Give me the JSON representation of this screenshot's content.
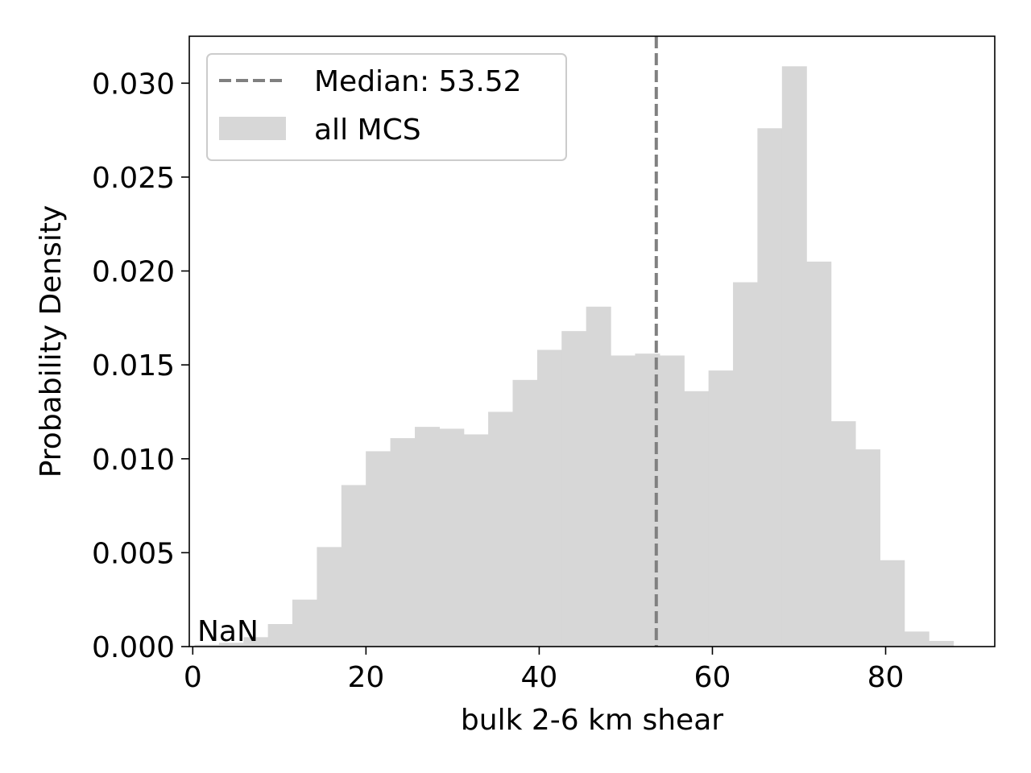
{
  "chart_data": {
    "type": "bar",
    "subtype": "histogram",
    "title": "",
    "xlabel": "bulk 2-6 km shear",
    "ylabel": "Probability Density",
    "xlim": [
      -0.4,
      92.6
    ],
    "ylim": [
      0,
      0.0325
    ],
    "x_ticks": [
      0,
      20,
      40,
      60,
      80
    ],
    "x_tick_labels": [
      "0",
      "20",
      "40",
      "60",
      "80"
    ],
    "y_ticks": [
      0,
      0.005,
      0.01,
      0.015,
      0.02,
      0.025,
      0.03
    ],
    "y_tick_labels": [
      "0.000",
      "0.005",
      "0.010",
      "0.015",
      "0.020",
      "0.025",
      "0.030"
    ],
    "grid": false,
    "bin_width": 2.826,
    "bins": [
      {
        "left": 0.2,
        "value": 0.0001
      },
      {
        "left": 3.03,
        "value": 0.0002
      },
      {
        "left": 5.85,
        "value": 0.0005
      },
      {
        "left": 8.68,
        "value": 0.0012
      },
      {
        "left": 11.5,
        "value": 0.0025
      },
      {
        "left": 14.33,
        "value": 0.0053
      },
      {
        "left": 17.16,
        "value": 0.0086
      },
      {
        "left": 19.98,
        "value": 0.0104
      },
      {
        "left": 22.81,
        "value": 0.0111
      },
      {
        "left": 25.64,
        "value": 0.0117
      },
      {
        "left": 28.46,
        "value": 0.0116
      },
      {
        "left": 31.29,
        "value": 0.0113
      },
      {
        "left": 34.11,
        "value": 0.0125
      },
      {
        "left": 36.94,
        "value": 0.0142
      },
      {
        "left": 39.77,
        "value": 0.0158
      },
      {
        "left": 42.59,
        "value": 0.0168
      },
      {
        "left": 45.42,
        "value": 0.0181
      },
      {
        "left": 48.25,
        "value": 0.0155
      },
      {
        "left": 51.07,
        "value": 0.0156
      },
      {
        "left": 53.9,
        "value": 0.0155
      },
      {
        "left": 56.72,
        "value": 0.0136
      },
      {
        "left": 59.55,
        "value": 0.0147
      },
      {
        "left": 62.38,
        "value": 0.0194
      },
      {
        "left": 65.2,
        "value": 0.0276
      },
      {
        "left": 68.03,
        "value": 0.0309
      },
      {
        "left": 70.86,
        "value": 0.0205
      },
      {
        "left": 73.68,
        "value": 0.012
      },
      {
        "left": 76.51,
        "value": 0.0105
      },
      {
        "left": 79.33,
        "value": 0.0046
      },
      {
        "left": 82.16,
        "value": 0.0008
      },
      {
        "left": 84.99,
        "value": 0.0003
      },
      {
        "left": 87.81,
        "value": 0.0
      }
    ],
    "bar_color": "#d7d7d7",
    "median": {
      "value": 53.52,
      "label": "Median: 53.52",
      "color": "#808080",
      "style": "dashed"
    },
    "legend": {
      "placement": "top-left",
      "entries": [
        {
          "label": "Median: 53.52",
          "kind": "dashed-line",
          "color": "#808080"
        },
        {
          "label": "all MCS",
          "kind": "patch",
          "color": "#d7d7d7"
        }
      ]
    },
    "annotations": [
      {
        "text": "NaN",
        "placement": "bottom-left"
      }
    ]
  }
}
